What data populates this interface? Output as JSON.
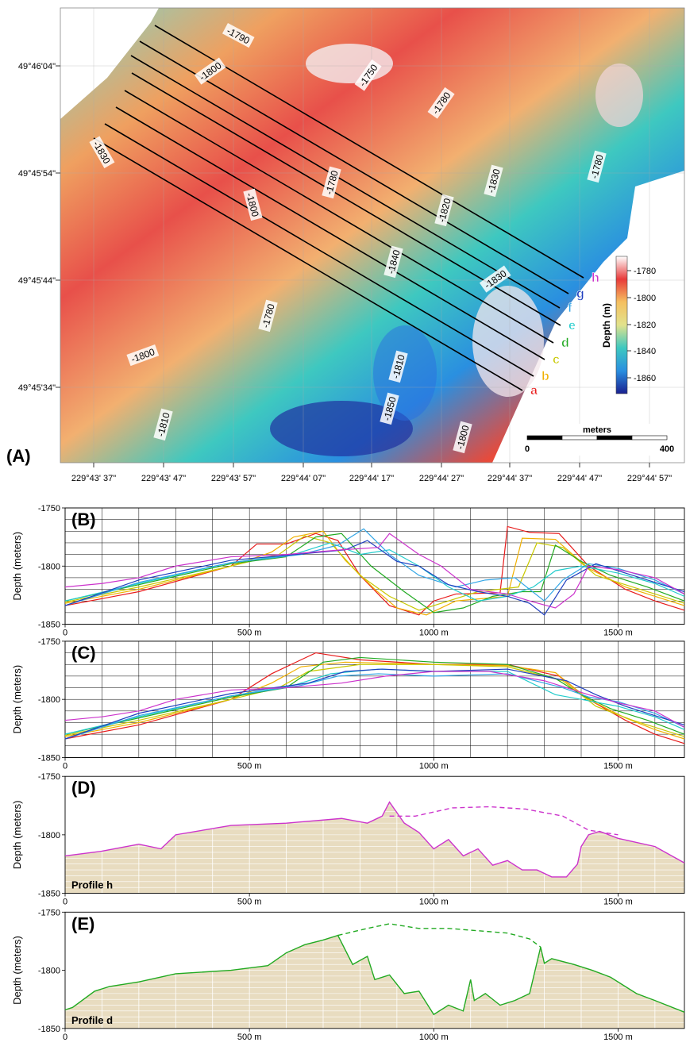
{
  "figure": {
    "panel_labels": [
      "(A)",
      "(B)",
      "(C)",
      "(D)",
      "(E)"
    ]
  },
  "map": {
    "lat_ticks": [
      "49°46'04\"",
      "49°45'54\"",
      "49°45'44\"",
      "49°45'34\""
    ],
    "lon_ticks": [
      "229°43' 37\"",
      "229°43' 47\"",
      "229°43' 57\"",
      "229°44' 07\"",
      "229°44' 17\"",
      "229°44' 27\"",
      "229°44' 37\"",
      "229°44' 47\"",
      "229°44' 57\""
    ],
    "contour_labels": [
      "-1790",
      "-1800",
      "-1750",
      "-1780",
      "-1830",
      "-1800",
      "-1780",
      "-1820",
      "-1830",
      "-1780",
      "-1840",
      "-1830",
      "-1780",
      "-1800",
      "-1810",
      "-1850",
      "-1810",
      "-1800"
    ],
    "profile_line_labels": [
      "h",
      "g",
      "f",
      "e",
      "d",
      "c",
      "b",
      "a"
    ],
    "profile_line_colors": [
      "#cc33cc",
      "#1f3fbf",
      "#33a6e6",
      "#22cccc",
      "#22aa22",
      "#c8c800",
      "#f0b000",
      "#e81c1c"
    ],
    "colorbar": {
      "title": "Depth (m)",
      "ticks": [
        "-1780",
        "-1800",
        "-1820",
        "-1840",
        "-1860"
      ],
      "colors": [
        "#ffffff",
        "#e83a3a",
        "#f5c060",
        "#e2e28c",
        "#3ec8c0",
        "#2a8fe0",
        "#1a2090"
      ]
    },
    "scale_bar": {
      "title": "meters",
      "labels": [
        "0",
        "400"
      ]
    }
  },
  "chart_data": [
    {
      "panel": "B",
      "type": "line",
      "ylabel": "Depth (meters)",
      "xlim": [
        0,
        1680
      ],
      "ylim": [
        -1850,
        -1750
      ],
      "x_ticks": [
        {
          "v": 0,
          "label": "0"
        },
        {
          "v": 500,
          "label": "500 m"
        },
        {
          "v": 1000,
          "label": "1000 m"
        },
        {
          "v": 1500,
          "label": "1500 m"
        }
      ],
      "y_ticks": [
        {
          "v": -1750,
          "label": "-1750"
        },
        {
          "v": -1800,
          "label": "-1800"
        },
        {
          "v": -1850,
          "label": "-1850"
        }
      ],
      "grid": true,
      "series": [
        {
          "color": "#e81c1c",
          "x": [
            0,
            200,
            450,
            520,
            600,
            680,
            740,
            800,
            880,
            960,
            1000,
            1060,
            1180,
            1200,
            1260,
            1340,
            1420,
            1520,
            1600,
            1680
          ],
          "y": [
            -1834,
            -1822,
            -1800,
            -1781,
            -1781,
            -1772,
            -1778,
            -1808,
            -1834,
            -1842,
            -1830,
            -1824,
            -1823,
            -1766,
            -1771,
            -1772,
            -1800,
            -1820,
            -1830,
            -1838
          ]
        },
        {
          "color": "#f0b000",
          "x": [
            0,
            200,
            450,
            560,
            620,
            700,
            760,
            840,
            900,
            980,
            1060,
            1200,
            1240,
            1330,
            1420,
            1520,
            1600,
            1680
          ],
          "y": [
            -1832,
            -1820,
            -1800,
            -1788,
            -1775,
            -1770,
            -1795,
            -1820,
            -1836,
            -1842,
            -1830,
            -1826,
            -1776,
            -1777,
            -1802,
            -1818,
            -1826,
            -1834
          ]
        },
        {
          "color": "#c8c800",
          "x": [
            0,
            200,
            450,
            580,
            650,
            720,
            800,
            880,
            960,
            1040,
            1120,
            1230,
            1280,
            1350,
            1440,
            1540,
            1620,
            1680
          ],
          "y": [
            -1831,
            -1818,
            -1800,
            -1790,
            -1774,
            -1780,
            -1808,
            -1826,
            -1838,
            -1830,
            -1822,
            -1818,
            -1780,
            -1784,
            -1808,
            -1818,
            -1826,
            -1832
          ]
        },
        {
          "color": "#22aa22",
          "x": [
            0,
            200,
            450,
            600,
            680,
            750,
            830,
            920,
            1000,
            1080,
            1160,
            1240,
            1290,
            1330,
            1400,
            1480,
            1580,
            1680
          ],
          "y": [
            -1830,
            -1816,
            -1798,
            -1792,
            -1775,
            -1772,
            -1800,
            -1822,
            -1840,
            -1836,
            -1826,
            -1822,
            -1822,
            -1782,
            -1796,
            -1808,
            -1818,
            -1830
          ]
        },
        {
          "color": "#22cccc",
          "x": [
            0,
            200,
            450,
            620,
            720,
            800,
            880,
            960,
            1040,
            1120,
            1200,
            1270,
            1330,
            1400,
            1500,
            1600,
            1680
          ],
          "y": [
            -1830,
            -1815,
            -1797,
            -1790,
            -1780,
            -1790,
            -1786,
            -1800,
            -1818,
            -1830,
            -1826,
            -1818,
            -1804,
            -1800,
            -1806,
            -1815,
            -1826
          ]
        },
        {
          "color": "#33a6e6",
          "x": [
            0,
            200,
            450,
            640,
            740,
            810,
            880,
            960,
            1060,
            1140,
            1220,
            1300,
            1350,
            1420,
            1500,
            1600,
            1680
          ],
          "y": [
            -1834,
            -1814,
            -1797,
            -1790,
            -1782,
            -1768,
            -1790,
            -1808,
            -1818,
            -1812,
            -1810,
            -1830,
            -1812,
            -1798,
            -1802,
            -1812,
            -1824
          ]
        },
        {
          "color": "#1f3fbf",
          "x": [
            0,
            200,
            450,
            660,
            760,
            820,
            900,
            960,
            1040,
            1120,
            1200,
            1260,
            1300,
            1360,
            1440,
            1520,
            1600,
            1680
          ],
          "y": [
            -1834,
            -1812,
            -1795,
            -1789,
            -1786,
            -1778,
            -1796,
            -1800,
            -1816,
            -1822,
            -1826,
            -1832,
            -1842,
            -1812,
            -1798,
            -1806,
            -1814,
            -1822
          ]
        },
        {
          "color": "#cc33cc",
          "x": [
            0,
            100,
            200,
            300,
            450,
            600,
            750,
            850,
            880,
            960,
            1020,
            1100,
            1200,
            1260,
            1330,
            1380,
            1420,
            1500,
            1600,
            1680
          ],
          "y": [
            -1818,
            -1815,
            -1810,
            -1800,
            -1792,
            -1790,
            -1786,
            -1784,
            -1772,
            -1790,
            -1800,
            -1820,
            -1824,
            -1830,
            -1836,
            -1824,
            -1800,
            -1803,
            -1810,
            -1824
          ]
        }
      ]
    },
    {
      "panel": "C",
      "type": "line",
      "ylabel": "Depth (meters)",
      "xlim": [
        0,
        1680
      ],
      "ylim": [
        -1850,
        -1750
      ],
      "x_ticks": [
        {
          "v": 0,
          "label": "0"
        },
        {
          "v": 500,
          "label": "500 m"
        },
        {
          "v": 1000,
          "label": "1000 m"
        },
        {
          "v": 1500,
          "label": "1500 m"
        }
      ],
      "y_ticks": [
        {
          "v": -1750,
          "label": "-1750"
        },
        {
          "v": -1800,
          "label": "-1800"
        },
        {
          "v": -1850,
          "label": "-1850"
        }
      ],
      "grid": true,
      "series": [
        {
          "color": "#e81c1c",
          "x": [
            0,
            200,
            450,
            560,
            680,
            800,
            1000,
            1200,
            1340,
            1420,
            1520,
            1600,
            1680
          ],
          "y": [
            -1834,
            -1822,
            -1800,
            -1778,
            -1760,
            -1766,
            -1770,
            -1770,
            -1780,
            -1800,
            -1818,
            -1830,
            -1838
          ]
        },
        {
          "color": "#f0b000",
          "x": [
            0,
            200,
            450,
            560,
            640,
            760,
            1000,
            1200,
            1330,
            1420,
            1520,
            1600,
            1680
          ],
          "y": [
            -1832,
            -1820,
            -1800,
            -1786,
            -1772,
            -1768,
            -1770,
            -1771,
            -1777,
            -1800,
            -1816,
            -1826,
            -1834
          ]
        },
        {
          "color": "#c8c800",
          "x": [
            0,
            200,
            450,
            580,
            660,
            800,
            1000,
            1200,
            1350,
            1440,
            1540,
            1620,
            1680
          ],
          "y": [
            -1831,
            -1818,
            -1800,
            -1790,
            -1776,
            -1770,
            -1770,
            -1772,
            -1784,
            -1806,
            -1818,
            -1826,
            -1832
          ]
        },
        {
          "color": "#22aa22",
          "x": [
            0,
            200,
            450,
            600,
            700,
            800,
            1000,
            1200,
            1330,
            1400,
            1480,
            1580,
            1680
          ],
          "y": [
            -1830,
            -1816,
            -1798,
            -1790,
            -1768,
            -1764,
            -1768,
            -1770,
            -1782,
            -1796,
            -1808,
            -1818,
            -1830
          ]
        },
        {
          "color": "#22cccc",
          "x": [
            0,
            200,
            450,
            620,
            720,
            850,
            1000,
            1200,
            1330,
            1400,
            1500,
            1600,
            1680
          ],
          "y": [
            -1830,
            -1815,
            -1797,
            -1788,
            -1778,
            -1774,
            -1776,
            -1776,
            -1796,
            -1800,
            -1806,
            -1815,
            -1826
          ]
        },
        {
          "color": "#33a6e6",
          "x": [
            0,
            200,
            450,
            640,
            740,
            850,
            1000,
            1200,
            1350,
            1420,
            1500,
            1600,
            1680
          ],
          "y": [
            -1834,
            -1814,
            -1797,
            -1788,
            -1780,
            -1778,
            -1780,
            -1778,
            -1790,
            -1798,
            -1802,
            -1812,
            -1824
          ]
        },
        {
          "color": "#1f3fbf",
          "x": [
            0,
            200,
            450,
            660,
            760,
            860,
            1000,
            1200,
            1360,
            1440,
            1520,
            1600,
            1680
          ],
          "y": [
            -1834,
            -1812,
            -1795,
            -1786,
            -1776,
            -1774,
            -1776,
            -1774,
            -1784,
            -1796,
            -1806,
            -1814,
            -1822
          ]
        },
        {
          "color": "#cc33cc",
          "x": [
            0,
            100,
            200,
            300,
            450,
            600,
            750,
            870,
            1000,
            1150,
            1300,
            1420,
            1500,
            1600,
            1680
          ],
          "y": [
            -1818,
            -1815,
            -1810,
            -1800,
            -1792,
            -1790,
            -1786,
            -1780,
            -1776,
            -1776,
            -1784,
            -1796,
            -1803,
            -1810,
            -1824
          ]
        }
      ]
    },
    {
      "panel": "D",
      "type": "area",
      "ylabel": "Depth (meters)",
      "profile_label": "Profile h",
      "xlim": [
        0,
        1680
      ],
      "ylim": [
        -1850,
        -1750
      ],
      "x_ticks": [
        {
          "v": 0,
          "label": "0"
        },
        {
          "v": 500,
          "label": "500 m"
        },
        {
          "v": 1000,
          "label": "1000 m"
        },
        {
          "v": 1500,
          "label": "1500 m"
        }
      ],
      "y_ticks": [
        {
          "v": -1750,
          "label": "-1750"
        },
        {
          "v": -1800,
          "label": "-1800"
        },
        {
          "v": -1850,
          "label": "-1850"
        }
      ],
      "grid": true,
      "fill": "#e8dcc0",
      "color": "#cc33cc",
      "measured": {
        "x": [
          0,
          100,
          200,
          260,
          300,
          450,
          600,
          750,
          820,
          860,
          880,
          920,
          960,
          1000,
          1040,
          1080,
          1120,
          1160,
          1200,
          1240,
          1280,
          1320,
          1360,
          1390,
          1400,
          1420,
          1450,
          1500,
          1600,
          1680
        ],
        "y": [
          -1818,
          -1814,
          -1808,
          -1812,
          -1800,
          -1792,
          -1790,
          -1786,
          -1790,
          -1784,
          -1772,
          -1790,
          -1798,
          -1812,
          -1804,
          -1818,
          -1812,
          -1826,
          -1822,
          -1830,
          -1830,
          -1836,
          -1836,
          -1825,
          -1810,
          -1800,
          -1797,
          -1803,
          -1810,
          -1824
        ]
      },
      "reconstructed": {
        "x": [
          880,
          950,
          1050,
          1150,
          1250,
          1350,
          1420,
          1500
        ],
        "y": [
          -1784,
          -1784,
          -1777,
          -1776,
          -1778,
          -1784,
          -1796,
          -1800
        ]
      }
    },
    {
      "panel": "E",
      "type": "area",
      "ylabel": "Depth (meters)",
      "profile_label": "Profile d",
      "xlim": [
        0,
        1680
      ],
      "ylim": [
        -1850,
        -1750
      ],
      "x_ticks": [
        {
          "v": 0,
          "label": "0"
        },
        {
          "v": 500,
          "label": "500 m"
        },
        {
          "v": 1000,
          "label": "1000 m"
        },
        {
          "v": 1500,
          "label": "1500 m"
        }
      ],
      "y_ticks": [
        {
          "v": -1750,
          "label": "-1750"
        },
        {
          "v": -1800,
          "label": "-1800"
        },
        {
          "v": -1850,
          "label": "-1850"
        }
      ],
      "grid": true,
      "fill": "#e8dcc0",
      "color": "#22aa22",
      "measured": {
        "x": [
          0,
          20,
          80,
          120,
          200,
          300,
          450,
          550,
          600,
          650,
          700,
          740,
          780,
          820,
          840,
          880,
          920,
          960,
          1000,
          1040,
          1080,
          1100,
          1110,
          1140,
          1180,
          1220,
          1260,
          1290,
          1300,
          1320,
          1380,
          1430,
          1480,
          1550,
          1600,
          1680
        ],
        "y": [
          -1834,
          -1832,
          -1818,
          -1814,
          -1810,
          -1803,
          -1800,
          -1796,
          -1785,
          -1778,
          -1774,
          -1770,
          -1795,
          -1788,
          -1808,
          -1804,
          -1820,
          -1818,
          -1838,
          -1830,
          -1835,
          -1808,
          -1826,
          -1820,
          -1830,
          -1826,
          -1820,
          -1780,
          -1794,
          -1790,
          -1795,
          -1800,
          -1806,
          -1820,
          -1826,
          -1836
        ]
      },
      "reconstructed": {
        "x": [
          740,
          820,
          880,
          960,
          1040,
          1120,
          1200,
          1260,
          1290
        ],
        "y": [
          -1770,
          -1764,
          -1760,
          -1764,
          -1764,
          -1766,
          -1768,
          -1773,
          -1780
        ]
      }
    }
  ]
}
